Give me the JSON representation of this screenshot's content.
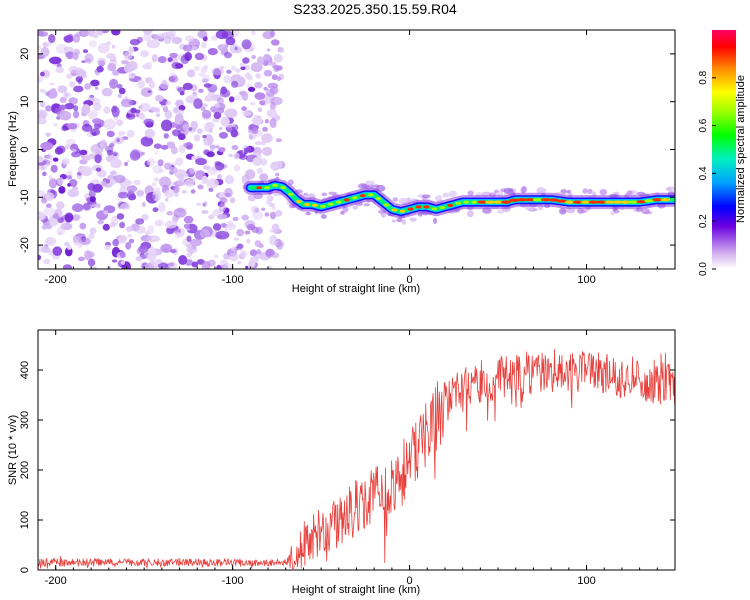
{
  "title": "S233.2025.350.15.59.R04",
  "chart_data": [
    {
      "type": "heatmap",
      "name": "spectrogram",
      "xlabel": "Height of straight line (km)",
      "ylabel": "Frequency (Hz)",
      "xlim": [
        -210,
        150
      ],
      "ylim": [
        -25,
        25
      ],
      "xticks": [
        -200,
        -100,
        0,
        100
      ],
      "yticks": [
        -20,
        -10,
        0,
        10,
        20
      ],
      "noise_region_x": [
        -210,
        -78
      ],
      "signal_track": {
        "x": [
          -90,
          -85,
          -80,
          -76,
          -72,
          -68,
          -64,
          -60,
          -55,
          -50,
          -45,
          -40,
          -35,
          -30,
          -25,
          -20,
          -15,
          -10,
          -5,
          0,
          5,
          10,
          15,
          20,
          25,
          30,
          35,
          40,
          45,
          50,
          55,
          60,
          70,
          80,
          90,
          100,
          110,
          120,
          130,
          140,
          150
        ],
        "y": [
          -8,
          -8,
          -8,
          -7.5,
          -7.8,
          -9,
          -10.5,
          -11.5,
          -11.5,
          -12,
          -11.5,
          -11,
          -10.5,
          -10,
          -9.5,
          -9.5,
          -11,
          -12.5,
          -13,
          -12.5,
          -12,
          -12,
          -12.5,
          -12,
          -11.5,
          -11,
          -11,
          -11,
          -11,
          -11,
          -11,
          -10.5,
          -10.5,
          -10.5,
          -11,
          -11,
          -11,
          -11,
          -11,
          -10.5,
          -10.5
        ]
      },
      "colorbar": {
        "label": "Normalized spectral amplitude",
        "range": [
          0,
          1
        ],
        "ticks": [
          "0.0",
          "0.2",
          "0.4",
          "0.6",
          "0.8"
        ]
      }
    },
    {
      "type": "line",
      "name": "snr",
      "xlabel": "Height of straight line (km)",
      "ylabel": "SNR (10 * v/v)",
      "xlim": [
        -210,
        150
      ],
      "ylim": [
        0,
        480
      ],
      "xticks": [
        -200,
        -100,
        0,
        100
      ],
      "yticks": [
        0,
        100,
        200,
        300,
        400
      ],
      "color": "#e8403c",
      "trend": {
        "x": [
          -210,
          -150,
          -100,
          -70,
          -65,
          -60,
          -50,
          -40,
          -30,
          -20,
          -10,
          0,
          10,
          20,
          30,
          40,
          60,
          80,
          100,
          120,
          140,
          150
        ],
        "y": [
          15,
          15,
          15,
          15,
          28,
          50,
          75,
          100,
          125,
          145,
          175,
          220,
          280,
          330,
          360,
          375,
          390,
          400,
          395,
          385,
          375,
          370
        ]
      }
    }
  ]
}
